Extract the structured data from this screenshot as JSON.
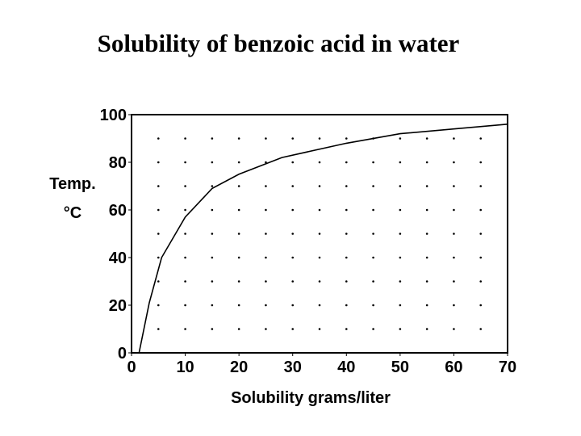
{
  "chart_data": {
    "type": "line",
    "title": "Solubility of benzoic acid in water",
    "xlabel": "Solubility grams/liter",
    "ylabel": [
      "Temp.",
      "°C"
    ],
    "series": [
      {
        "name": "benzoic acid",
        "color": "#000000",
        "x": [
          1.4,
          3.3,
          5.6,
          10,
          15,
          20,
          28,
          40,
          50,
          60,
          70
        ],
        "values": [
          0,
          21,
          40,
          57,
          69,
          75,
          82,
          88,
          92,
          94,
          96
        ]
      }
    ],
    "xlim": [
      0,
      70
    ],
    "xticks": [
      0,
      10,
      20,
      30,
      40,
      50,
      60,
      70
    ],
    "ylim": [
      0,
      100
    ],
    "yticks": [
      0,
      20,
      40,
      60,
      80,
      100
    ],
    "grid": "dots",
    "grid_x": [
      5,
      10,
      15,
      20,
      25,
      30,
      35,
      40,
      45,
      50,
      55,
      60,
      65
    ],
    "grid_y": [
      10,
      20,
      30,
      40,
      50,
      60,
      70,
      80,
      90
    ]
  }
}
